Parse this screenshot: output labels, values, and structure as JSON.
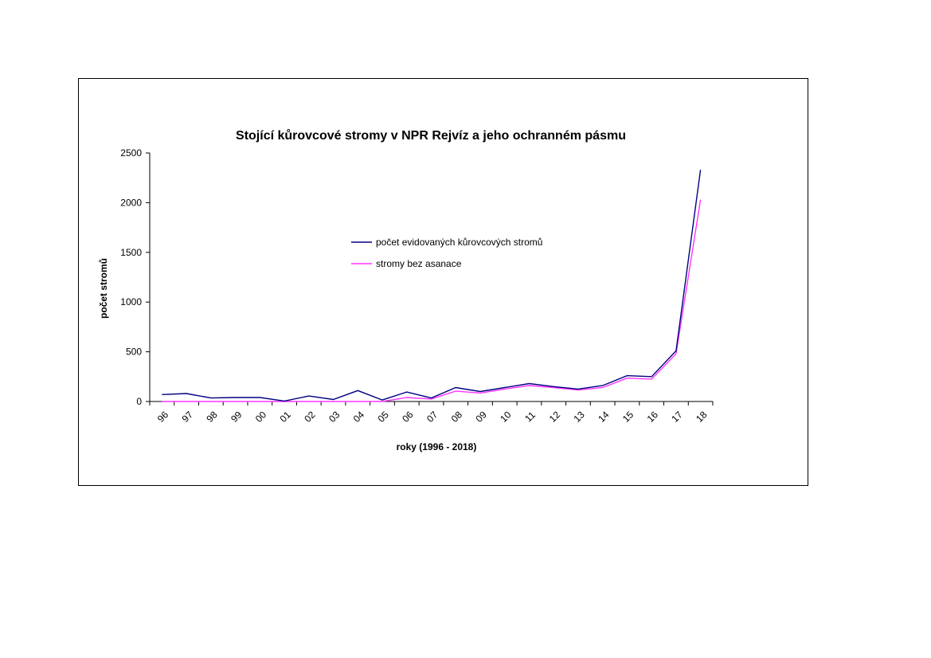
{
  "chart_data": {
    "type": "line",
    "title": "Stojící kůrovcové stromy v NPR Rejvíz a jeho ochranném pásmu",
    "xlabel": "roky (1996 - 2018)",
    "ylabel": "počet stromů",
    "ylim": [
      0,
      2500
    ],
    "yticks": [
      "0",
      "500",
      "1000",
      "1500",
      "2000",
      "2500"
    ],
    "categories": [
      "96",
      "97",
      "98",
      "99",
      "00",
      "01",
      "02",
      "03",
      "04",
      "05",
      "06",
      "07",
      "08",
      "09",
      "10",
      "11",
      "12",
      "13",
      "14",
      "15",
      "16",
      "17",
      "18"
    ],
    "legend_position": "center",
    "grid": false,
    "series": [
      {
        "name": "počet evidovaných kůrovcových stromů",
        "color": "#000080",
        "values": [
          70,
          80,
          35,
          40,
          40,
          5,
          55,
          20,
          110,
          15,
          95,
          35,
          140,
          100,
          140,
          180,
          150,
          125,
          160,
          260,
          250,
          510,
          2330
        ]
      },
      {
        "name": "stromy bez asanace",
        "color": "#ff33ff",
        "values": [
          0,
          0,
          0,
          0,
          0,
          0,
          0,
          0,
          0,
          0,
          40,
          25,
          105,
          85,
          125,
          160,
          140,
          115,
          140,
          235,
          225,
          480,
          2030
        ]
      }
    ]
  }
}
